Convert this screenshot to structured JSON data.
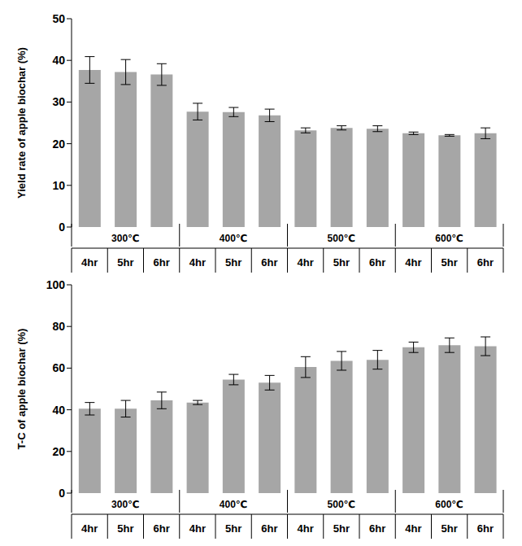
{
  "chart_data": [
    {
      "type": "bar",
      "y_label": "Yield rate of apple biochar (%)",
      "categories": [
        "4hr",
        "5hr",
        "6hr",
        "4hr",
        "5hr",
        "6hr",
        "4hr",
        "5hr",
        "6hr",
        "4hr",
        "5hr",
        "6hr"
      ],
      "groups": [
        "300℃",
        "400℃",
        "500℃",
        "600℃"
      ],
      "values": [
        37.7,
        37.2,
        36.6,
        27.7,
        27.6,
        26.8,
        23.2,
        23.8,
        23.6,
        22.5,
        22.0,
        22.5
      ],
      "errors": [
        3.2,
        3.0,
        2.6,
        2.0,
        1.1,
        1.5,
        0.6,
        0.5,
        0.7,
        0.3,
        0.2,
        1.3
      ],
      "color": "#a6a6a6",
      "ylim": [
        0,
        50
      ],
      "yticks": [
        0,
        10,
        20,
        30,
        40,
        50
      ],
      "grid": false
    },
    {
      "type": "bar",
      "y_label": "T-C of apple biochar (%)",
      "categories": [
        "4hr",
        "5hr",
        "6hr",
        "4hr",
        "5hr",
        "6hr",
        "4hr",
        "5hr",
        "6hr",
        "4hr",
        "5hr",
        "6hr"
      ],
      "groups": [
        "300℃",
        "400℃",
        "500℃",
        "600℃"
      ],
      "values": [
        40.5,
        40.5,
        44.5,
        43.5,
        54.5,
        53.0,
        60.5,
        63.5,
        64.0,
        70.0,
        71.0,
        70.5
      ],
      "errors": [
        3.0,
        4.0,
        4.0,
        1.0,
        2.5,
        3.5,
        5.0,
        4.5,
        4.5,
        2.5,
        3.5,
        4.5
      ],
      "color": "#a6a6a6",
      "ylim": [
        0,
        100
      ],
      "yticks": [
        0,
        20,
        40,
        60,
        80,
        100
      ],
      "grid": false
    }
  ]
}
